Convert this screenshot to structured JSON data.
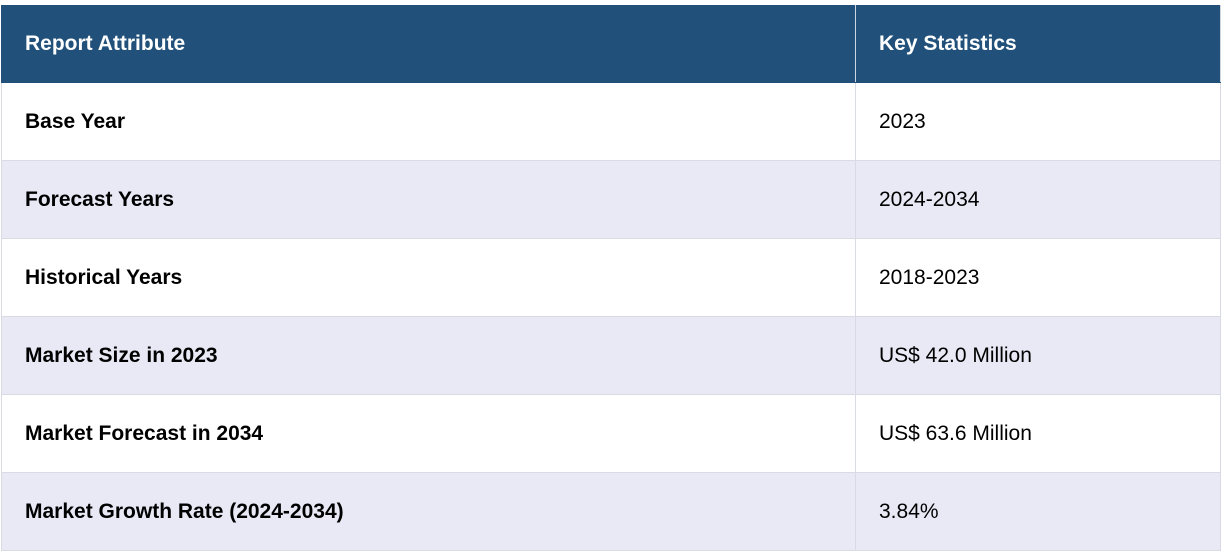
{
  "table": {
    "header": [
      "Report Attribute",
      "Key Statistics"
    ],
    "rows": [
      [
        "Base Year",
        "2023"
      ],
      [
        "Forecast Years",
        "2024-2034"
      ],
      [
        "Historical Years",
        "2018-2023"
      ],
      [
        "Market Size in 2023",
        "US$ 42.0 Million"
      ],
      [
        "Market Forecast in 2034",
        "US$ 63.6 Million"
      ],
      [
        "Market Growth Rate (2024-2034)",
        "3.84%"
      ]
    ]
  }
}
